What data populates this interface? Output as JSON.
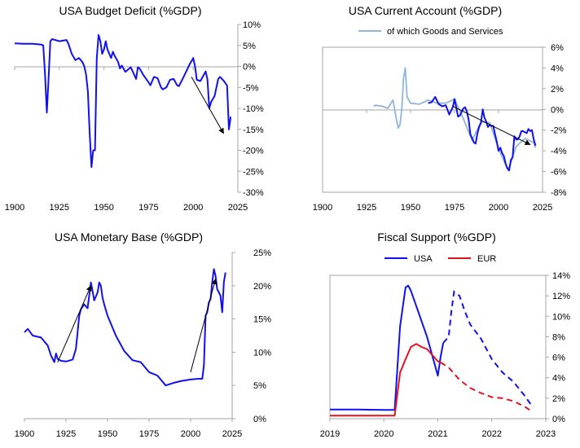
{
  "colors": {
    "usa": "#1111ee",
    "eur": "#e0141e",
    "gs": "#8fb5dc",
    "axis": "#a6a6a6",
    "arrow": "#000000"
  },
  "chart_data": [
    {
      "id": "deficit",
      "type": "line",
      "title": "USA Budget Deficit (%GDP)",
      "x_ticks": [
        "1900",
        "1925",
        "1950",
        "1975",
        "2000",
        "2025"
      ],
      "y_ticks": [
        "10%",
        "5%",
        "0%",
        "-5%",
        "-10%",
        "-15%",
        "-20%",
        "-25%",
        "-30%"
      ],
      "xlim": [
        1900,
        2025
      ],
      "ylim": [
        -30,
        10
      ],
      "series": [
        {
          "name": "USA",
          "color": "usa",
          "x": [
            1900,
            1905,
            1910,
            1915,
            1916,
            1917,
            1918,
            1919,
            1920,
            1921,
            1925,
            1929,
            1930,
            1932,
            1934,
            1936,
            1938,
            1939,
            1940,
            1941,
            1942,
            1943,
            1944,
            1945,
            1946,
            1947,
            1948,
            1949,
            1950,
            1951,
            1952,
            1953,
            1954,
            1955,
            1956,
            1958,
            1959,
            1960,
            1962,
            1965,
            1968,
            1969,
            1970,
            1972,
            1975,
            1976,
            1978,
            1980,
            1982,
            1983,
            1985,
            1987,
            1989,
            1991,
            1992,
            1995,
            1998,
            1999,
            2000,
            2001,
            2002,
            2004,
            2007,
            2008,
            2009,
            2010,
            2012,
            2014,
            2015,
            2017,
            2018,
            2019,
            2020,
            2021
          ],
          "y": [
            5.5,
            5.4,
            5.4,
            5.2,
            5.0,
            -2,
            -11,
            -3,
            6,
            6.5,
            6,
            6.3,
            5.5,
            3,
            1.5,
            2,
            1,
            0,
            -2,
            -6,
            -16,
            -24,
            -20,
            -20,
            2,
            7.5,
            6,
            3,
            4,
            6,
            4,
            3,
            2,
            3.5,
            2.5,
            1,
            -0.5,
            0.2,
            -1.3,
            -0.2,
            -3,
            -0.2,
            -0.5,
            -2,
            -3.8,
            -4.5,
            -2.5,
            -2.8,
            -5,
            -5.5,
            -5,
            -3.2,
            -3,
            -4.5,
            -4.7,
            -2.2,
            0.5,
            1.2,
            2,
            0,
            -3.2,
            -3.5,
            -1.2,
            -3.2,
            -10,
            -8.5,
            -7,
            -3,
            -2.5,
            -3.4,
            -4,
            -4.6,
            -15,
            -12
          ]
        }
      ],
      "annotations": [
        {
          "type": "arrow",
          "from": [
            1999,
            -2.5
          ],
          "to": [
            2017,
            -16
          ]
        }
      ]
    },
    {
      "id": "account",
      "type": "line",
      "title": "USA Current Account (%GDP)",
      "legend": {
        "label": "of which Goods and Services",
        "position": "top"
      },
      "x_ticks": [
        "1900",
        "1925",
        "1950",
        "1975",
        "2000",
        "2025"
      ],
      "y_ticks": [
        "6%",
        "4%",
        "2%",
        "0%",
        "-2%",
        "-4%",
        "-6%",
        "-8%"
      ],
      "xlim": [
        1900,
        2025
      ],
      "ylim": [
        -8,
        6
      ],
      "series": [
        {
          "name": "Current Account",
          "color": "usa",
          "x": [
            1960,
            1962,
            1964,
            1966,
            1968,
            1970,
            1972,
            1974,
            1975,
            1977,
            1978,
            1980,
            1981,
            1982,
            1983,
            1984,
            1985,
            1986,
            1987,
            1988,
            1989,
            1990,
            1991,
            1992,
            1993,
            1994,
            1995,
            1996,
            1997,
            1998,
            1999,
            2000,
            2001,
            2002,
            2003,
            2004,
            2005,
            2006,
            2007,
            2008,
            2009,
            2010,
            2011,
            2012,
            2013,
            2014,
            2015,
            2016,
            2017,
            2018,
            2019,
            2020,
            2021
          ],
          "y": [
            0.6,
            0.7,
            1.2,
            0.5,
            0.3,
            0.4,
            -0.5,
            0.2,
            1,
            -0.7,
            -0.6,
            0.1,
            0.2,
            -0.2,
            -1,
            -2.4,
            -2.8,
            -3.2,
            -3.3,
            -2.3,
            -1.7,
            -1.3,
            0.0,
            -0.8,
            -1.2,
            -1.7,
            -1.5,
            -1.6,
            -1.6,
            -2.4,
            -3.1,
            -4.0,
            -3.7,
            -4.2,
            -4.5,
            -5.2,
            -5.7,
            -5.9,
            -4.9,
            -4.6,
            -2.6,
            -2.9,
            -2.9,
            -2.6,
            -2.1,
            -2.1,
            -2.2,
            -2.3,
            -1.9,
            -2.1,
            -2.0,
            -2.9,
            -3.5
          ]
        },
        {
          "name": "of which Goods and Services",
          "color": "gs",
          "x": [
            1929,
            1930,
            1934,
            1937,
            1940,
            1942,
            1943,
            1944,
            1945,
            1946,
            1947,
            1948,
            1950,
            1955,
            1960,
            1965,
            1970,
            1975,
            1980,
            1985,
            1990,
            1995,
            2000,
            2005,
            2006,
            2010,
            2015,
            2020,
            2021
          ],
          "y": [
            0.3,
            0.4,
            0.3,
            0.1,
            0.9,
            -1.0,
            -1.8,
            -1.5,
            0.0,
            3.0,
            4.0,
            1.2,
            0.6,
            0.5,
            0.9,
            0.6,
            0.6,
            1.0,
            -0.9,
            -3.0,
            -1.2,
            -1.3,
            -3.8,
            -5.7,
            -5.6,
            -3.6,
            -2.8,
            -3.2,
            -3.7
          ]
        }
      ],
      "annotations": [
        {
          "type": "arrow",
          "from": [
            1974,
            0.3
          ],
          "to": [
            2018,
            -3.4
          ]
        }
      ]
    },
    {
      "id": "monetary",
      "type": "line",
      "title": "USA Monetary Base (%GDP)",
      "x_ticks": [
        "1900",
        "1925",
        "1950",
        "1975",
        "2000",
        "2025"
      ],
      "y_ticks": [
        "25%",
        "20%",
        "15%",
        "10%",
        "5%",
        "0%"
      ],
      "xlim": [
        1900,
        2025
      ],
      "ylim": [
        0,
        25
      ],
      "series": [
        {
          "name": "USA",
          "color": "usa",
          "x": [
            1900,
            1902,
            1905,
            1910,
            1914,
            1916,
            1918,
            1919,
            1920,
            1922,
            1925,
            1929,
            1931,
            1933,
            1934,
            1936,
            1938,
            1940,
            1942,
            1944,
            1945,
            1946,
            1947,
            1948,
            1950,
            1955,
            1960,
            1965,
            1970,
            1975,
            1980,
            1985,
            1990,
            1995,
            2000,
            2005,
            2007,
            2008,
            2009,
            2010,
            2011,
            2012,
            2013,
            2014,
            2015,
            2016,
            2017,
            2018,
            2019,
            2020,
            2021
          ],
          "y": [
            13,
            13.5,
            12.5,
            12.2,
            11,
            9.5,
            8.5,
            9.8,
            9.0,
            8.7,
            8.6,
            8.9,
            10.5,
            15.5,
            16.5,
            17.2,
            16.6,
            20.5,
            17.8,
            19,
            20.5,
            20.0,
            18.2,
            17.2,
            15.5,
            12.5,
            10.2,
            8.8,
            8.5,
            7,
            6.5,
            5.0,
            5.4,
            5.7,
            5.9,
            6.0,
            6.0,
            8.0,
            15.5,
            16.0,
            17.5,
            18.0,
            20.5,
            22.5,
            21.5,
            19.5,
            19.0,
            18.5,
            16.0,
            20.5,
            22.0
          ]
        }
      ],
      "annotations": [
        {
          "type": "arrow",
          "from": [
            1920,
            8.5
          ],
          "to": [
            1940,
            20
          ]
        },
        {
          "type": "arrow",
          "from": [
            2000,
            7.0
          ],
          "to": [
            2015,
            21
          ]
        }
      ]
    },
    {
      "id": "fiscal",
      "type": "line",
      "title": "Fiscal Support (%GDP)",
      "legend": {
        "entries": [
          "USA",
          "EUR"
        ],
        "position": "top"
      },
      "x_ticks": [
        "2019",
        "2020",
        "2021",
        "2022",
        "2023"
      ],
      "y_ticks": [
        "14%",
        "12%",
        "10%",
        "8%",
        "6%",
        "4%",
        "2%",
        "0%"
      ],
      "xlim": [
        2019,
        2023
      ],
      "ylim": [
        0,
        14
      ],
      "series": [
        {
          "name": "USA",
          "color": "usa",
          "dash_from_x": 2021.1,
          "x": [
            2019.0,
            2019.5,
            2020.0,
            2020.2,
            2020.3,
            2020.4,
            2020.45,
            2020.5,
            2020.6,
            2020.7,
            2020.8,
            2021.0,
            2021.05,
            2021.1,
            2021.2,
            2021.25,
            2021.3,
            2021.4,
            2021.5,
            2021.6,
            2021.8,
            2022.0,
            2022.2,
            2022.4,
            2022.6,
            2022.75
          ],
          "y": [
            0.9,
            0.9,
            0.85,
            0.85,
            9.0,
            12.8,
            13.0,
            12.5,
            11.0,
            9.5,
            8.0,
            4.2,
            6.0,
            7.4,
            8.0,
            10.5,
            12.4,
            12.0,
            10.5,
            9.2,
            7.8,
            5.8,
            4.5,
            3.6,
            2.3,
            1.2
          ]
        },
        {
          "name": "EUR",
          "color": "eur",
          "dash_from_x": 2021.05,
          "x": [
            2019.0,
            2019.5,
            2020.0,
            2020.2,
            2020.3,
            2020.4,
            2020.5,
            2020.6,
            2020.7,
            2020.8,
            2021.0,
            2021.05,
            2021.2,
            2021.4,
            2021.6,
            2021.8,
            2022.0,
            2022.2,
            2022.4,
            2022.6,
            2022.75
          ],
          "y": [
            0.3,
            0.3,
            0.3,
            0.3,
            4.5,
            5.8,
            7.0,
            7.3,
            7.0,
            6.8,
            5.6,
            5.5,
            5.0,
            3.8,
            3.0,
            2.5,
            2.1,
            2.0,
            1.7,
            1.2,
            0.7
          ]
        }
      ]
    }
  ]
}
